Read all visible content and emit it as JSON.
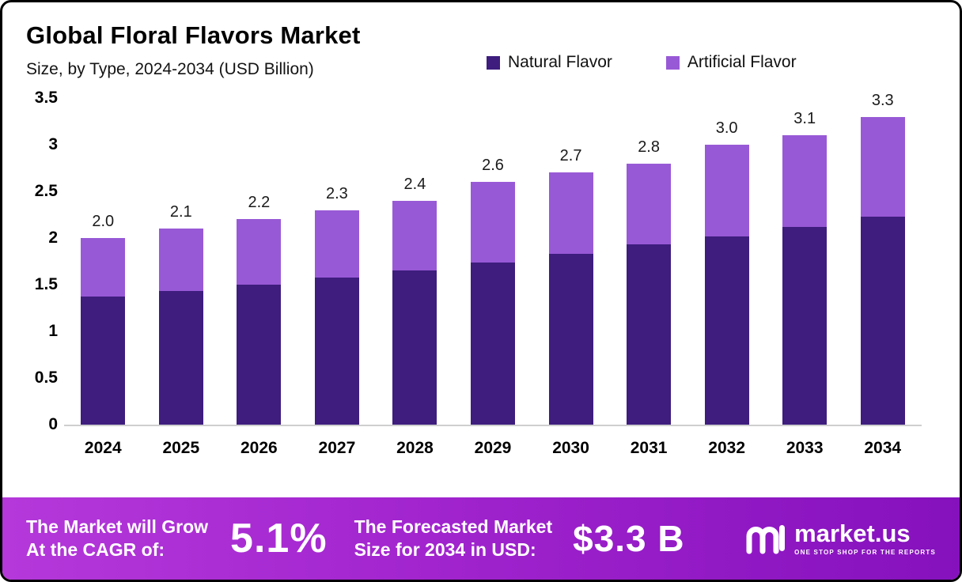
{
  "header": {
    "title": "Global Floral Flavors Market",
    "subtitle": "Size, by Type, 2024-2034 (USD Billion)"
  },
  "legend": {
    "items": [
      {
        "label": "Natural Flavor",
        "color": "#3e1d7e"
      },
      {
        "label": "Artificial Flavor",
        "color": "#9859d6"
      }
    ]
  },
  "chart_data": {
    "type": "bar",
    "stacked": true,
    "title": "Global Floral Flavors Market Size, by Type, 2024-2034 (USD Billion)",
    "categories": [
      "2024",
      "2025",
      "2026",
      "2027",
      "2028",
      "2029",
      "2030",
      "2031",
      "2032",
      "2033",
      "2034"
    ],
    "series": [
      {
        "name": "Natural Flavor",
        "color": "#3e1d7e",
        "values": [
          1.37,
          1.43,
          1.5,
          1.58,
          1.65,
          1.74,
          1.83,
          1.93,
          2.02,
          2.12,
          2.23
        ]
      },
      {
        "name": "Artificial Flavor",
        "color": "#9859d6",
        "values": [
          0.63,
          0.67,
          0.7,
          0.72,
          0.75,
          0.86,
          0.87,
          0.87,
          0.98,
          0.98,
          1.07
        ]
      }
    ],
    "totals": [
      "2.0",
      "2.1",
      "2.2",
      "2.3",
      "2.4",
      "2.6",
      "2.7",
      "2.8",
      "3.0",
      "3.1",
      "3.3"
    ],
    "ylim": [
      0,
      3.5
    ],
    "yticks": [
      "3.5",
      "3",
      "2.5",
      "2",
      "1.5",
      "1",
      "0.5",
      "0"
    ],
    "grid": false,
    "legend_position": "top-right"
  },
  "footer": {
    "cagr_label_line1": "The Market will Grow",
    "cagr_label_line2": "At the CAGR of:",
    "cagr_value": "5.1%",
    "forecast_label_line1": "The Forecasted Market",
    "forecast_label_line2": "Size for 2034 in USD:",
    "forecast_value": "$3.3 B",
    "brand_name": "market.us",
    "brand_tagline": "ONE STOP SHOP FOR THE REPORTS"
  }
}
